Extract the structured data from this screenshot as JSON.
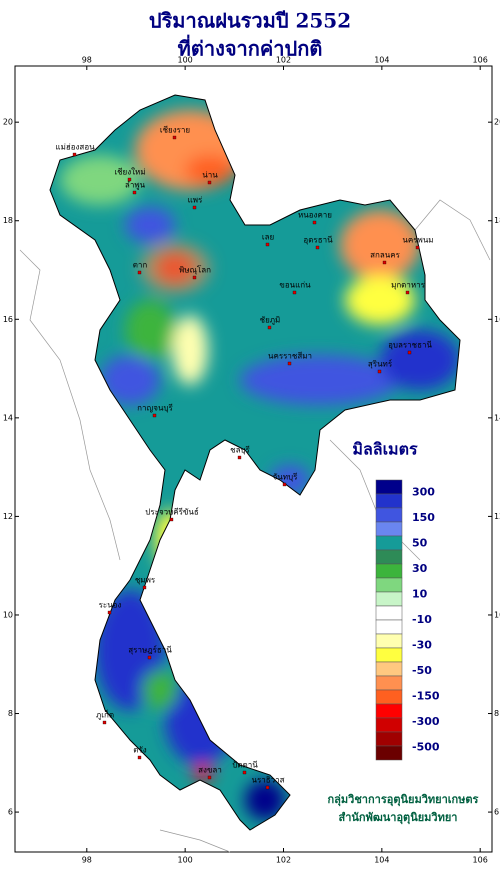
{
  "title": [
    "ปริมาณฝนรวมปี 2552",
    "ที่ต่างจากค่าปกติ"
  ],
  "map": {
    "lonlim": [
      96.54,
      106.24
    ],
    "latlim": [
      5.19,
      21.14
    ],
    "lon_ticks": [
      98,
      100,
      102,
      104,
      106
    ],
    "lat_ticks": [
      6,
      8,
      10,
      12,
      14,
      16,
      18,
      20
    ],
    "places": [
      "แม่ฮ่องสอน",
      "เชียงราย",
      "เชียงใหม่",
      "น่าน",
      "ลำพูน",
      "แพร่",
      "หนองคาย",
      "เลย",
      "อุดรธานี",
      "สกลนคร",
      "นครพนม",
      "ตาก",
      "พิษณุโลก",
      "ขอนแก่น",
      "มุกดาหาร",
      "ชัยภูมิ",
      "นครราชสีมา",
      "อุบลราชธานี",
      "สุรินทร์",
      "กาญจนบุรี",
      "ชลบุรี",
      "จันทบุรี",
      "ประจวบคีรีขันธ์",
      "ชุมพร",
      "ระนอง",
      "สุราษฎร์ธานี",
      "ภูเก็ต",
      "ตรัง",
      "สงขลา",
      "ปัตตานี",
      "นราธิวาส"
    ]
  },
  "legend": {
    "title": "มิลลิเมตร",
    "colors": [
      "#00008b",
      "#2233cc",
      "#4055e0",
      "#6a86f0",
      "#159b98",
      "#2e8b57",
      "#3cb43c",
      "#7fd77f",
      "#c8f5c8",
      "#ffffff",
      "#ffffff",
      "#ffffb0",
      "#ffff40",
      "#ffc880",
      "#ff9050",
      "#ff6020",
      "#ff0000",
      "#d00000",
      "#a00000",
      "#6b0000"
    ],
    "ticks": [
      300,
      150,
      50,
      30,
      10,
      -10,
      -30,
      -50,
      -150,
      -300,
      -500
    ]
  },
  "credits": [
    "กลุ่มวิชาการอุตุนิยมวิทยาเกษตร",
    "สำนักพัฒนาอุตุนิยมวิทยา"
  ]
}
